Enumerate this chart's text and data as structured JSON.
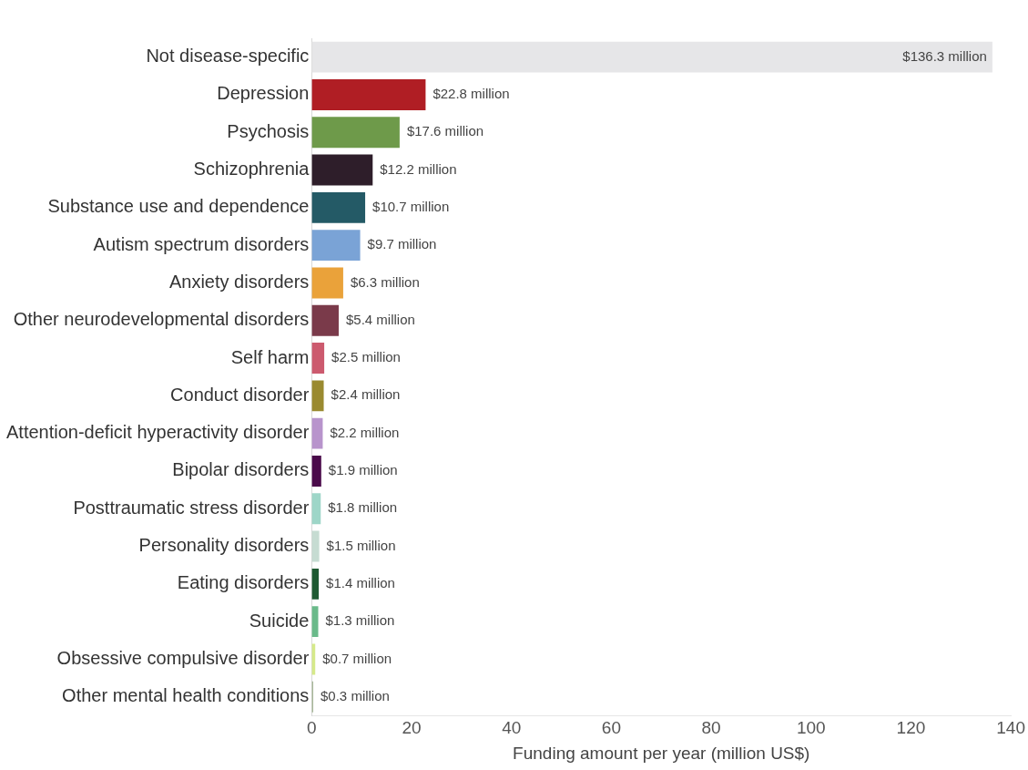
{
  "chart_data": {
    "type": "bar",
    "orientation": "horizontal",
    "xlabel": "Funding amount per year (million US$)",
    "categories": [
      "Not disease-specific",
      "Depression",
      "Psychosis",
      "Schizophrenia",
      "Substance use and dependence",
      "Autism spectrum disorders",
      "Anxiety disorders",
      "Other neurodevelopmental disorders",
      "Self harm",
      "Conduct disorder",
      "Attention-deficit hyperactivity disorder",
      "Bipolar disorders",
      "Posttraumatic stress disorder",
      "Personality disorders",
      "Eating disorders",
      "Suicide",
      "Obsessive compulsive disorder",
      "Other mental health conditions"
    ],
    "values": [
      136.3,
      22.8,
      17.6,
      12.2,
      10.7,
      9.7,
      6.3,
      5.4,
      2.5,
      2.4,
      2.2,
      1.9,
      1.8,
      1.5,
      1.4,
      1.3,
      0.7,
      0.3
    ],
    "colors": [
      "#e6e6e8",
      "#b01e24",
      "#6e9a4a",
      "#2e1e2a",
      "#245a66",
      "#7aa3d6",
      "#eaa23a",
      "#7a3a4a",
      "#cc5a6e",
      "#9a8a30",
      "#b894cc",
      "#4a0a4a",
      "#9ed6c8",
      "#c6dcd2",
      "#1e5a32",
      "#6aba8a",
      "#d6ea8a",
      "#a8b89a"
    ],
    "value_labels": [
      "$136.3 million",
      "$22.8 million",
      "$17.6 million",
      "$12.2 million",
      "$10.7 million",
      "$9.7 million",
      "$6.3 million",
      "$5.4 million",
      "$2.5 million",
      "$2.4 million",
      "$2.2 million",
      "$1.9 million",
      "$1.8 million",
      "$1.5 million",
      "$1.4 million",
      "$1.3 million",
      "$0.7 million",
      "$0.3 million"
    ],
    "xlim": [
      0,
      140
    ],
    "xticks": [
      0,
      20,
      40,
      60,
      80,
      100,
      120,
      140
    ],
    "grid": false,
    "legend": false
  }
}
